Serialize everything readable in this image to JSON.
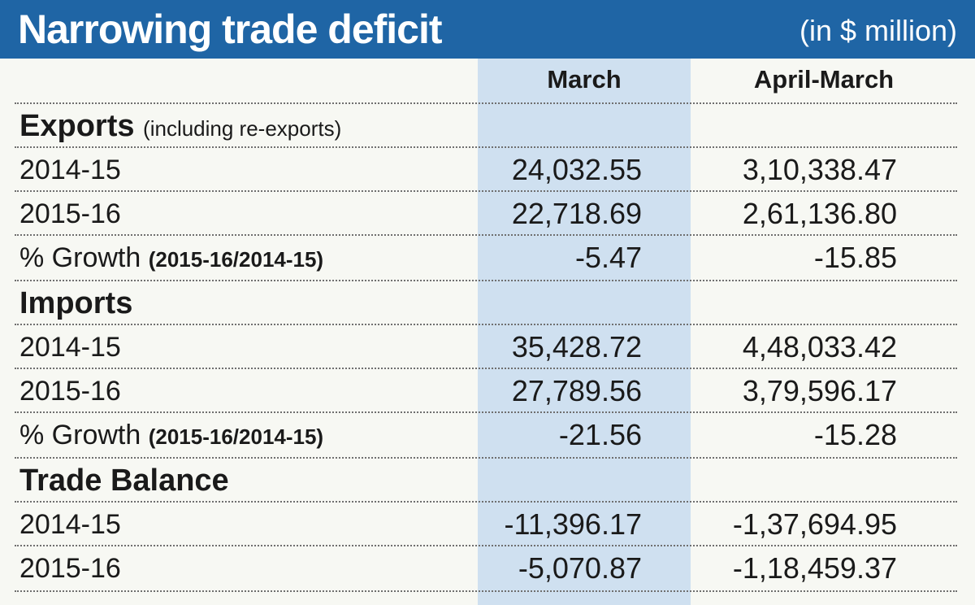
{
  "header": {
    "title": "Narrowing trade deficit",
    "unit": "(in $ million)"
  },
  "columns": {
    "march": "March",
    "april_march": "April-March"
  },
  "sections": [
    {
      "label": "Exports",
      "note": "(including re-exports)",
      "rows": [
        {
          "label": "2014-15",
          "march": "24,032.55",
          "april_march": "3,10,338.47"
        },
        {
          "label": "2015-16",
          "march": "22,718.69",
          "april_march": "2,61,136.80"
        },
        {
          "label": "% Growth",
          "paren": "(2015-16/2014-15)",
          "march": "-5.47",
          "april_march": "-15.85"
        }
      ]
    },
    {
      "label": "Imports",
      "rows": [
        {
          "label": "2014-15",
          "march": "35,428.72",
          "april_march": "4,48,033.42"
        },
        {
          "label": "2015-16",
          "march": "27,789.56",
          "april_march": "3,79,596.17"
        },
        {
          "label": "% Growth",
          "paren": "(2015-16/2014-15)",
          "march": "-21.56",
          "april_march": "-15.28"
        }
      ]
    },
    {
      "label": "Trade Balance",
      "rows": [
        {
          "label": "2014-15",
          "march": "-11,396.17",
          "april_march": "-1,37,694.95"
        },
        {
          "label": "2015-16",
          "march": "-5,070.87",
          "april_march": "-1,18,459.37"
        }
      ]
    }
  ],
  "chart_data": {
    "type": "table",
    "title": "Narrowing trade deficit",
    "subtitle": "(in $ million)",
    "columns": [
      "March",
      "April-March"
    ],
    "rows": [
      {
        "group": "Exports",
        "label": "2014-15",
        "values": [
          24032.55,
          310338.47
        ]
      },
      {
        "group": "Exports",
        "label": "2015-16",
        "values": [
          22718.69,
          261136.8
        ]
      },
      {
        "group": "Exports",
        "label": "% Growth (2015-16/2014-15)",
        "values": [
          -5.47,
          -15.85
        ]
      },
      {
        "group": "Imports",
        "label": "2014-15",
        "values": [
          35428.72,
          448033.42
        ]
      },
      {
        "group": "Imports",
        "label": "2015-16",
        "values": [
          27789.56,
          379596.17
        ]
      },
      {
        "group": "Imports",
        "label": "% Growth (2015-16/2014-15)",
        "values": [
          -21.56,
          -15.28
        ]
      },
      {
        "group": "Trade Balance",
        "label": "2014-15",
        "values": [
          -11396.17,
          -137694.95
        ]
      },
      {
        "group": "Trade Balance",
        "label": "2015-16",
        "values": [
          -5070.87,
          -118459.37
        ]
      }
    ]
  }
}
